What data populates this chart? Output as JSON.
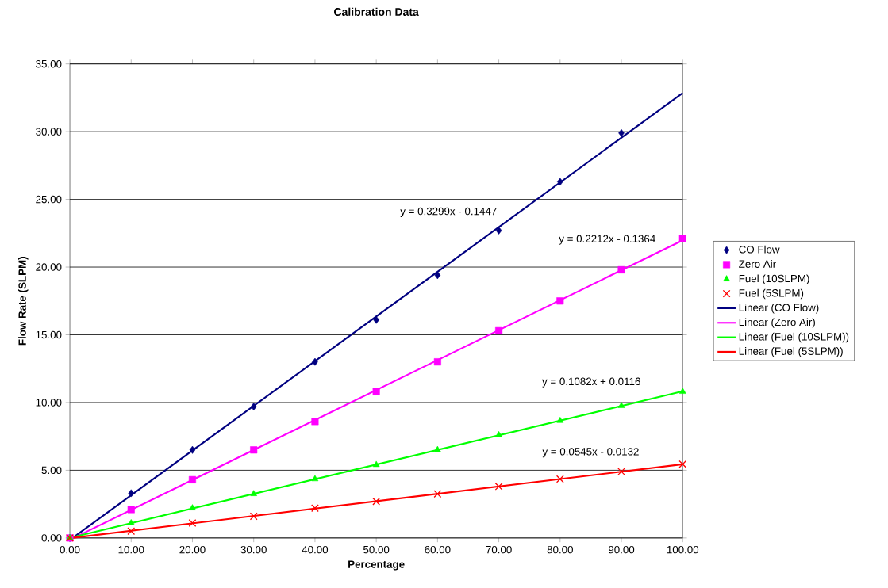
{
  "chart_data": {
    "type": "scatter",
    "title": "Calibration Data",
    "xlabel": "Percentage",
    "ylabel": "Flow Rate (SLPM)",
    "xlim": [
      0,
      100
    ],
    "ylim": [
      0,
      35
    ],
    "xticks": [
      {
        "value": 0,
        "label": "0.00"
      },
      {
        "value": 10,
        "label": "10.00"
      },
      {
        "value": 20,
        "label": "20.00"
      },
      {
        "value": 30,
        "label": "30.00"
      },
      {
        "value": 40,
        "label": "40.00"
      },
      {
        "value": 50,
        "label": "50.00"
      },
      {
        "value": 60,
        "label": "60.00"
      },
      {
        "value": 70,
        "label": "70.00"
      },
      {
        "value": 80,
        "label": "80.00"
      },
      {
        "value": 90,
        "label": "90.00"
      },
      {
        "value": 100,
        "label": "100.00"
      }
    ],
    "yticks": [
      {
        "value": 0,
        "label": "0.00"
      },
      {
        "value": 5,
        "label": "5.00"
      },
      {
        "value": 10,
        "label": "10.00"
      },
      {
        "value": 15,
        "label": "15.00"
      },
      {
        "value": 20,
        "label": "20.00"
      },
      {
        "value": 25,
        "label": "25.00"
      },
      {
        "value": 30,
        "label": "30.00"
      },
      {
        "value": 35,
        "label": "35.00"
      }
    ],
    "grid": "y",
    "legend": "right",
    "series": [
      {
        "name": "CO Flow",
        "marker": "diamond",
        "color": "#000080",
        "x": [
          0,
          10,
          20,
          30,
          40,
          50,
          60,
          70,
          80,
          90
        ],
        "values": [
          0,
          3.3,
          6.5,
          9.7,
          13.0,
          16.1,
          19.4,
          22.7,
          26.3,
          29.9
        ]
      },
      {
        "name": "Zero Air",
        "marker": "square",
        "color": "#ff00ff",
        "x": [
          0,
          10,
          20,
          30,
          40,
          50,
          60,
          70,
          80,
          90,
          100
        ],
        "values": [
          0,
          2.1,
          4.3,
          6.5,
          8.6,
          10.8,
          13.0,
          15.3,
          17.5,
          19.8,
          22.1
        ]
      },
      {
        "name": "Fuel (10SLPM)",
        "marker": "triangle",
        "color": "#00ff00",
        "x": [
          0,
          10,
          20,
          30,
          40,
          50,
          60,
          70,
          80,
          90,
          100
        ],
        "values": [
          0,
          1.1,
          2.2,
          3.25,
          4.35,
          5.4,
          6.5,
          7.6,
          8.65,
          9.75,
          10.8
        ]
      },
      {
        "name": "Fuel (5SLPM)",
        "marker": "cross",
        "color": "#ff0000",
        "x": [
          0,
          10,
          20,
          30,
          40,
          50,
          60,
          70,
          80,
          90,
          100
        ],
        "values": [
          0,
          0.5,
          1.1,
          1.6,
          2.2,
          2.7,
          3.25,
          3.8,
          4.35,
          4.9,
          5.45
        ]
      },
      {
        "name": "Linear (CO Flow)",
        "type": "line",
        "marker": "none",
        "line_style": "solid",
        "color": "#000080",
        "x": [
          0.44,
          100
        ],
        "values": [
          0,
          32.85
        ]
      },
      {
        "name": "Linear (Zero Air)",
        "type": "line",
        "marker": "none",
        "line_style": "solid",
        "color": "#ff00ff",
        "x": [
          0.62,
          100
        ],
        "values": [
          0,
          21.98
        ]
      },
      {
        "name": "Linear (Fuel (10SLPM))",
        "type": "line",
        "marker": "none",
        "line_style": "solid",
        "color": "#00ff00",
        "x": [
          0,
          100
        ],
        "values": [
          0.01,
          10.83
        ]
      },
      {
        "name": "Linear (Fuel (5SLPM))",
        "type": "line",
        "marker": "none",
        "line_style": "solid",
        "color": "#ff0000",
        "x": [
          0.24,
          100
        ],
        "values": [
          0,
          5.44
        ]
      }
    ],
    "annotations": [
      "y = 0.3299x - 0.1447",
      "y = 0.2212x - 0.1364",
      "y = 0.1082x + 0.0116",
      "y = 0.0545x - 0.0132"
    ]
  }
}
